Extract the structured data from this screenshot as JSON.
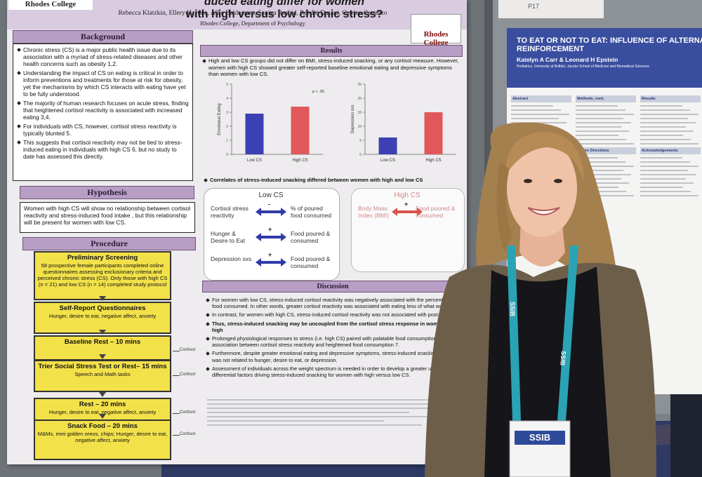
{
  "left_poster": {
    "title_lines": [
      "duced eating differ for women",
      "with high versus low chronic stress?"
    ],
    "logo_left": "Rhodes College",
    "logo_right": "Rhodes College",
    "authors": "Rebecca Klatzkin, Ellery Hayden, Allie Baldassaro, Saniya Rasbid, Reedhi Dasani, Catrina Cattanzo",
    "affiliation": "Rhodes College, Department of Psychology",
    "background": {
      "heading": "Background",
      "bullets": [
        "Chronic stress (CS) is a major public health issue due to its association with a myriad of stress-related diseases and other health concerns such as obesity 1,2.",
        "Understanding the impact of CS on eating is critical in order to inform preventions and treatments for those at risk for obesity, yet the mechanisms by which CS interacts with eating have yet to be fully understood.",
        "The majority of human research focuses on acute stress, finding that heightened cortisol reactivity is associated with increased eating 3,4.",
        "For individuals with CS, however, cortisol stress reactivity is typically blunted 5.",
        "This suggests that cortisol reactivity may not be tied to stress-induced eating in individuals with high CS 6, but no study to date has assessed this directly."
      ]
    },
    "hypothesis": {
      "heading": "Hypothesis",
      "text": "Women with high CS will show no relationship between cortisol reactivity and stress-induced food intake , but this relationship will be present for women with low CS."
    },
    "procedure": {
      "heading": "Procedure",
      "side_label": "Cortisol",
      "steps": [
        {
          "title": "Preliminary Screening",
          "text": "58 prospective female participants completed online questionnaires assessing exclusionary criteria and perceived chronic stress (CS). Only those with high CS (n = 21) and low CS (n = 14) completed study protocol"
        },
        {
          "title": "Self-Report Questionnaires",
          "text": "Hunger, desire to eat, negative affect, anxiety"
        },
        {
          "title": "Baseline Rest – 10 mins"
        },
        {
          "title": "Trier Social Stress Test or Rest– 15 mins",
          "text": "Speech and Math tasks"
        },
        {
          "title": "Rest – 20 mins",
          "text": "Hunger, desire to eat, negative affect, anxiety"
        },
        {
          "title": "Snack Food – 20 mins",
          "text": "M&Ms, mini golden oreos, chips; Hunger, desire to eat, negative affect, anxiety"
        }
      ]
    },
    "results": {
      "heading": "Results",
      "intro": "High and low CS groups did not differ on BMI, stress-induced snacking, or any cortisol measure. However, women with high CS showed greater self-reported baseline emotional eating and depressive symptoms than women with low CS.",
      "charts": [
        {
          "y_label": "Emotional Eating",
          "categories": [
            "Low CS",
            "High CS"
          ],
          "values": [
            2.9,
            3.4
          ],
          "colors": [
            "#3d40b3",
            "#e0585c"
          ],
          "ylim": [
            0,
            5
          ],
          "yticks": [
            0,
            1,
            2,
            3,
            4,
            5
          ],
          "annotation": "p < .05"
        },
        {
          "y_label": "Depression sxs",
          "categories": [
            "Low CS",
            "High CS"
          ],
          "values": [
            6,
            15
          ],
          "colors": [
            "#3d40b3",
            "#e0585c"
          ],
          "ylim": [
            0,
            25
          ],
          "yticks": [
            0,
            5,
            10,
            15,
            20,
            25
          ]
        }
      ],
      "correlates": "Correlates of stress-induced snacking differed between women with high and low CS",
      "low": {
        "label": "Low CS",
        "rows": [
          {
            "left": "Cortisol stress reactivity",
            "sign": "-",
            "right": "% of poured food consumed"
          },
          {
            "left": "Hunger & Desire to Eat",
            "sign": "+",
            "right": "Food poured & consumed"
          },
          {
            "left": "Depression sxs",
            "sign": "+",
            "right": "Food poured & consumed"
          }
        ]
      },
      "high": {
        "label": "High CS",
        "rows": [
          {
            "left": "Body Mass Index (BMI)",
            "sign": "+",
            "right": "Food poured & consumed"
          }
        ]
      }
    },
    "discussion": {
      "heading": "Discussion",
      "bullets": [
        "For women with low CS, stress-induced cortisol reactivity was negatively associated with the percentage of food consumed. In other words, greater cortisol reactivity was associated with eating less of what was po",
        "In contrast, for women with high CS, stress-induced cortisol reactivity was not associated with post-stres",
        "Thus, stress-induced snacking may be uncoupled from the cortisol stress response in women with high",
        "Prolonged physiological responses to stress (i.e. high CS) paired with palatable food consumption may se the association between cortisol stress reactivity and heightened food consumption 7.",
        "Furthermore, despite greater emotional eating and depressive symptoms, stress-induced snacking in wom was not related to hunger, desire to eat, or depression.",
        "Assessment of individuals across the weight spectrum is needed in order to develop a greater understand differential factors driving stress-induced snacking for women with high versus low CS."
      ]
    }
  },
  "right_poster": {
    "board_label": "P17",
    "title_lines": [
      "TO EAT OR NOT TO EAT: INFLUENCE OF ALTERNATIVES ON FOO",
      "REINFORCEMENT"
    ],
    "authors": "Katelyn A Carr & Leonard H Epstein",
    "affiliation": "Pediatrics, University at Buffalo, Jacobs School of Medicine and Biomedical Sciences",
    "sections": [
      "Abstract",
      "Methods, cont.",
      "Results",
      "Relative Food Reinforcement Measure",
      "Conclusion",
      "Future Directions",
      "Acknowledgements"
    ]
  },
  "badge": {
    "org": "SSIB",
    "lanyard": "SSIB"
  }
}
